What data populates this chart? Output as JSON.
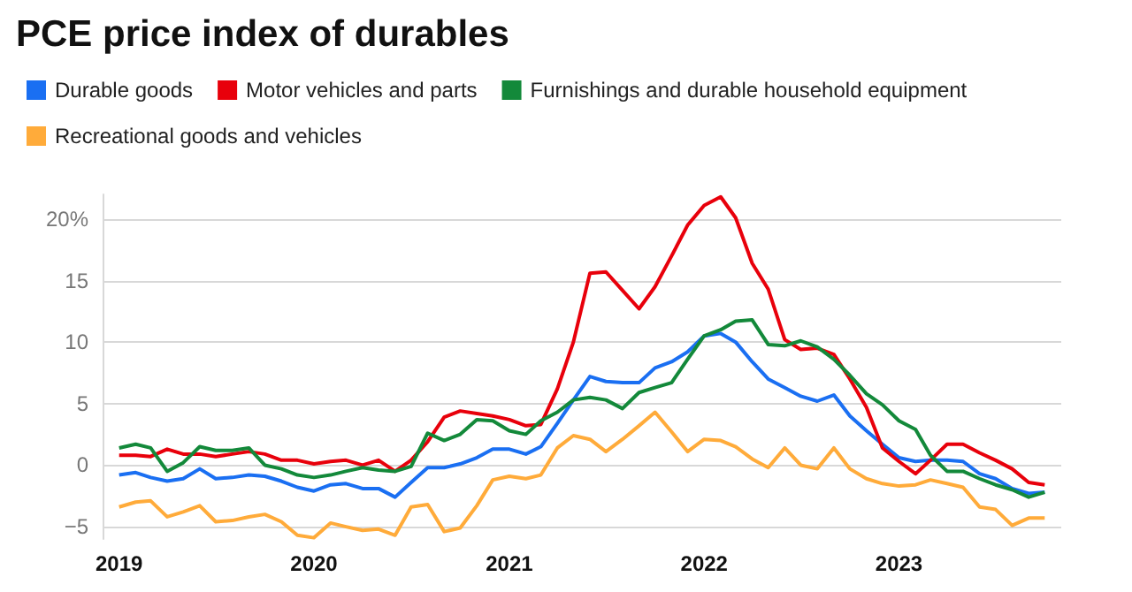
{
  "chart_data": {
    "type": "line",
    "title": "PCE price index of durables",
    "x": [
      "2019-01",
      "2019-02",
      "2019-03",
      "2019-04",
      "2019-05",
      "2019-06",
      "2019-07",
      "2019-08",
      "2019-09",
      "2019-10",
      "2019-11",
      "2019-12",
      "2020-01",
      "2020-02",
      "2020-03",
      "2020-04",
      "2020-05",
      "2020-06",
      "2020-07",
      "2020-08",
      "2020-09",
      "2020-10",
      "2020-11",
      "2020-12",
      "2021-01",
      "2021-02",
      "2021-03",
      "2021-04",
      "2021-05",
      "2021-06",
      "2021-07",
      "2021-08",
      "2021-09",
      "2021-10",
      "2021-11",
      "2021-12",
      "2022-01",
      "2022-02",
      "2022-03",
      "2022-04",
      "2022-05",
      "2022-06",
      "2022-07",
      "2022-08",
      "2022-09",
      "2022-10",
      "2022-11",
      "2022-12",
      "2023-01",
      "2023-02",
      "2023-03",
      "2023-04",
      "2023-05",
      "2023-06",
      "2023-07",
      "2023-08",
      "2023-09",
      "2023-10"
    ],
    "series": [
      {
        "name": "Durable goods",
        "color": "#1a6ff2",
        "values": [
          -0.8,
          -0.6,
          -1.0,
          -1.3,
          -1.1,
          -0.3,
          -1.1,
          -1.0,
          -0.8,
          -0.9,
          -1.3,
          -1.8,
          -2.1,
          -1.6,
          -1.5,
          -1.9,
          -1.9,
          -2.6,
          -1.4,
          -0.2,
          -0.2,
          0.1,
          0.6,
          1.3,
          1.3,
          0.9,
          1.5,
          3.4,
          5.3,
          7.2,
          6.8,
          6.7,
          6.7,
          7.9,
          8.4,
          9.2,
          10.5,
          10.7,
          10.0,
          8.4,
          7.0,
          6.3,
          5.6,
          5.2,
          5.7,
          4.0,
          2.8,
          1.7,
          0.6,
          0.3,
          0.4,
          0.4,
          0.3,
          -0.7,
          -1.1,
          -1.9,
          -2.3,
          -2.2
        ]
      },
      {
        "name": "Motor vehicles and parts",
        "color": "#e8000b",
        "values": [
          0.8,
          0.8,
          0.7,
          1.3,
          0.9,
          0.9,
          0.7,
          0.9,
          1.1,
          0.9,
          0.4,
          0.4,
          0.1,
          0.3,
          0.4,
          0,
          0.4,
          -0.5,
          0.4,
          1.9,
          3.9,
          4.4,
          4.2,
          4.0,
          3.7,
          3.2,
          3.3,
          6.2,
          10.0,
          15.6,
          15.7,
          14.2,
          12.7,
          14.5,
          17.0,
          19.5,
          21.1,
          21.8,
          20.1,
          16.4,
          14.3,
          10.2,
          9.4,
          9.5,
          9.0,
          7.0,
          4.7,
          1.4,
          0.3,
          -0.7,
          0.4,
          1.7,
          1.7,
          1.0,
          0.4,
          -0.3,
          -1.4,
          -1.6
        ]
      },
      {
        "name": "Furnishings and durable household equipment",
        "color": "#13893a",
        "values": [
          1.4,
          1.7,
          1.4,
          -0.5,
          0.2,
          1.5,
          1.2,
          1.2,
          1.4,
          0,
          -0.3,
          -0.8,
          -1.0,
          -0.8,
          -0.5,
          -0.2,
          -0.4,
          -0.5,
          -0.1,
          2.6,
          2.0,
          2.5,
          3.7,
          3.6,
          2.8,
          2.5,
          3.6,
          4.3,
          5.3,
          5.5,
          5.3,
          4.6,
          5.9,
          6.3,
          6.7,
          8.6,
          10.5,
          11.0,
          11.7,
          11.8,
          9.8,
          9.7,
          10.1,
          9.6,
          8.6,
          7.3,
          5.8,
          4.9,
          3.6,
          2.9,
          0.8,
          -0.5,
          -0.5,
          -1.1,
          -1.6,
          -2.0,
          -2.6,
          -2.2
        ]
      },
      {
        "name": "Recreational goods and vehicles",
        "color": "#ffab3a",
        "values": [
          -3.4,
          -3.0,
          -2.9,
          -4.2,
          -3.8,
          -3.3,
          -4.6,
          -4.5,
          -4.2,
          -4.0,
          -4.6,
          -5.7,
          -5.9,
          -4.7,
          -5.0,
          -5.3,
          -5.2,
          -5.7,
          -3.4,
          -3.2,
          -5.4,
          -5.1,
          -3.3,
          -1.2,
          -0.9,
          -1.1,
          -0.8,
          1.4,
          2.4,
          2.1,
          1.1,
          2.1,
          3.2,
          4.3,
          2.7,
          1.1,
          2.1,
          2.0,
          1.5,
          0.5,
          -0.2,
          1.4,
          0,
          -0.3,
          1.4,
          -0.3,
          -1.1,
          -1.5,
          -1.7,
          -1.6,
          -1.2,
          -1.5,
          -1.8,
          -3.4,
          -3.6,
          -4.9,
          -4.3,
          -4.3
        ]
      }
    ],
    "xlim": [
      "2018-12",
      "2023-11"
    ],
    "xticks": [
      {
        "value": "2019",
        "label": "2019"
      },
      {
        "value": "2020",
        "label": "2020"
      },
      {
        "value": "2021",
        "label": "2021"
      },
      {
        "value": "2022",
        "label": "2022"
      },
      {
        "value": "2023",
        "label": "2023"
      }
    ],
    "ylim": [
      -6,
      22
    ],
    "yticks": [
      {
        "value": -5,
        "label": "−5"
      },
      0,
      5,
      10,
      15,
      {
        "value": 20,
        "label": "20%"
      }
    ],
    "grid": "y",
    "legend": "top left",
    "marker": "none",
    "line_style": "solid"
  }
}
